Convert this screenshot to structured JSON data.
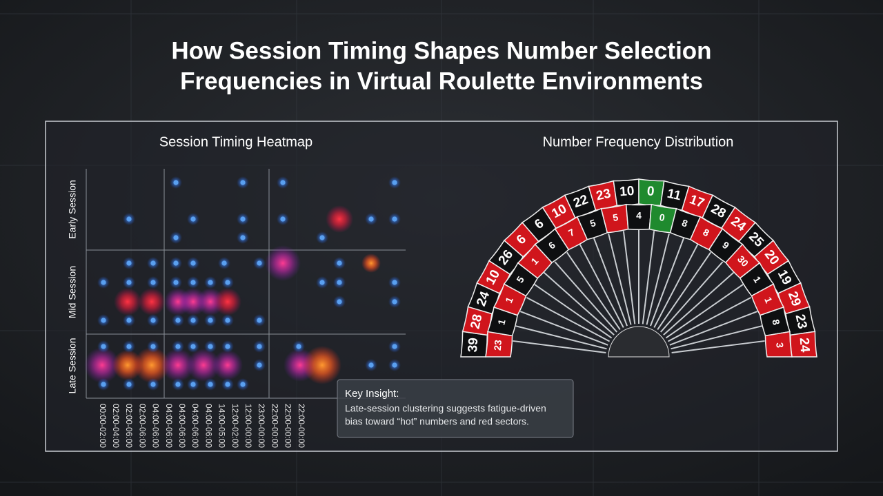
{
  "header": {
    "title_lines": [
      "How Session Timing Shapes Number Selection",
      "Frequencies in Virtual Roulette Environments"
    ]
  },
  "heatmap": {
    "title": "Session Timing Heatmap",
    "row_labels": [
      "Early Session",
      "Mid Session",
      "Late Session"
    ],
    "column_labels": [
      "00:00-02:00",
      "02:00-04:00",
      "02:00-06:00",
      "02:00-06:00",
      "04:00-06:00",
      "04:00-06:00",
      "04:00-06:00",
      "04:00-06:00",
      "04:00-06:00",
      "14:00-05:00",
      "12:00-02:00",
      "12:00-00:00",
      "23:00-00:00",
      "22:00-00:00",
      "22:00-00:00",
      "22:00-00:00"
    ]
  },
  "wheel": {
    "title": "Number Frequency Distribution",
    "outer": [
      "39",
      "28",
      "24",
      "10",
      "26",
      "6",
      "6",
      "10",
      "22",
      "23",
      "10",
      "0",
      "11",
      "17",
      "28",
      "24",
      "25",
      "20",
      "19",
      "29",
      "23",
      "24"
    ],
    "inner": [
      "23",
      "1",
      "1",
      "5",
      "1",
      "6",
      "7",
      "5",
      "5",
      "4",
      "0",
      "8",
      "8",
      "9",
      "30",
      "1",
      "1",
      "8",
      "3"
    ]
  },
  "insight": {
    "heading": "Key Insight:",
    "body_lines": [
      "Late-session clustering suggests fatigue-driven",
      "bias toward “hot” numbers and red sectors."
    ]
  }
}
